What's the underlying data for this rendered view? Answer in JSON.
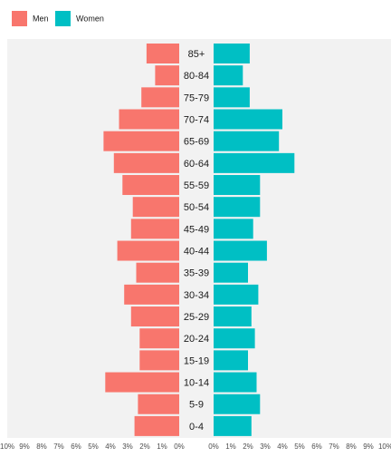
{
  "chart_data": {
    "type": "bar",
    "orientation": "horizontal",
    "layout": "population-pyramid",
    "categories": [
      "0-4",
      "5-9",
      "10-14",
      "15-19",
      "20-24",
      "25-29",
      "30-34",
      "35-39",
      "40-44",
      "45-49",
      "50-54",
      "55-59",
      "60-64",
      "65-69",
      "70-74",
      "75-79",
      "80-84",
      "85+"
    ],
    "series": [
      {
        "name": "Men",
        "color": "#F8766D",
        "values": [
          2.6,
          2.4,
          4.3,
          2.3,
          2.3,
          2.8,
          3.2,
          2.5,
          3.6,
          2.8,
          2.7,
          3.3,
          3.8,
          4.4,
          3.5,
          2.2,
          1.4,
          1.9
        ]
      },
      {
        "name": "Women",
        "color": "#00BFC4",
        "values": [
          2.2,
          2.7,
          2.5,
          2.0,
          2.4,
          2.2,
          2.6,
          2.0,
          3.1,
          2.3,
          2.7,
          2.7,
          4.7,
          3.8,
          4.0,
          2.1,
          1.7,
          2.1
        ]
      }
    ],
    "xlim": [
      0,
      10
    ],
    "x_ticks": [
      "0%",
      "1%",
      "2%",
      "3%",
      "4%",
      "5%",
      "6%",
      "7%",
      "8%",
      "9%",
      "10%"
    ],
    "legend_position": "top-left",
    "panel_background": "#F2F2F2",
    "grid": false
  }
}
